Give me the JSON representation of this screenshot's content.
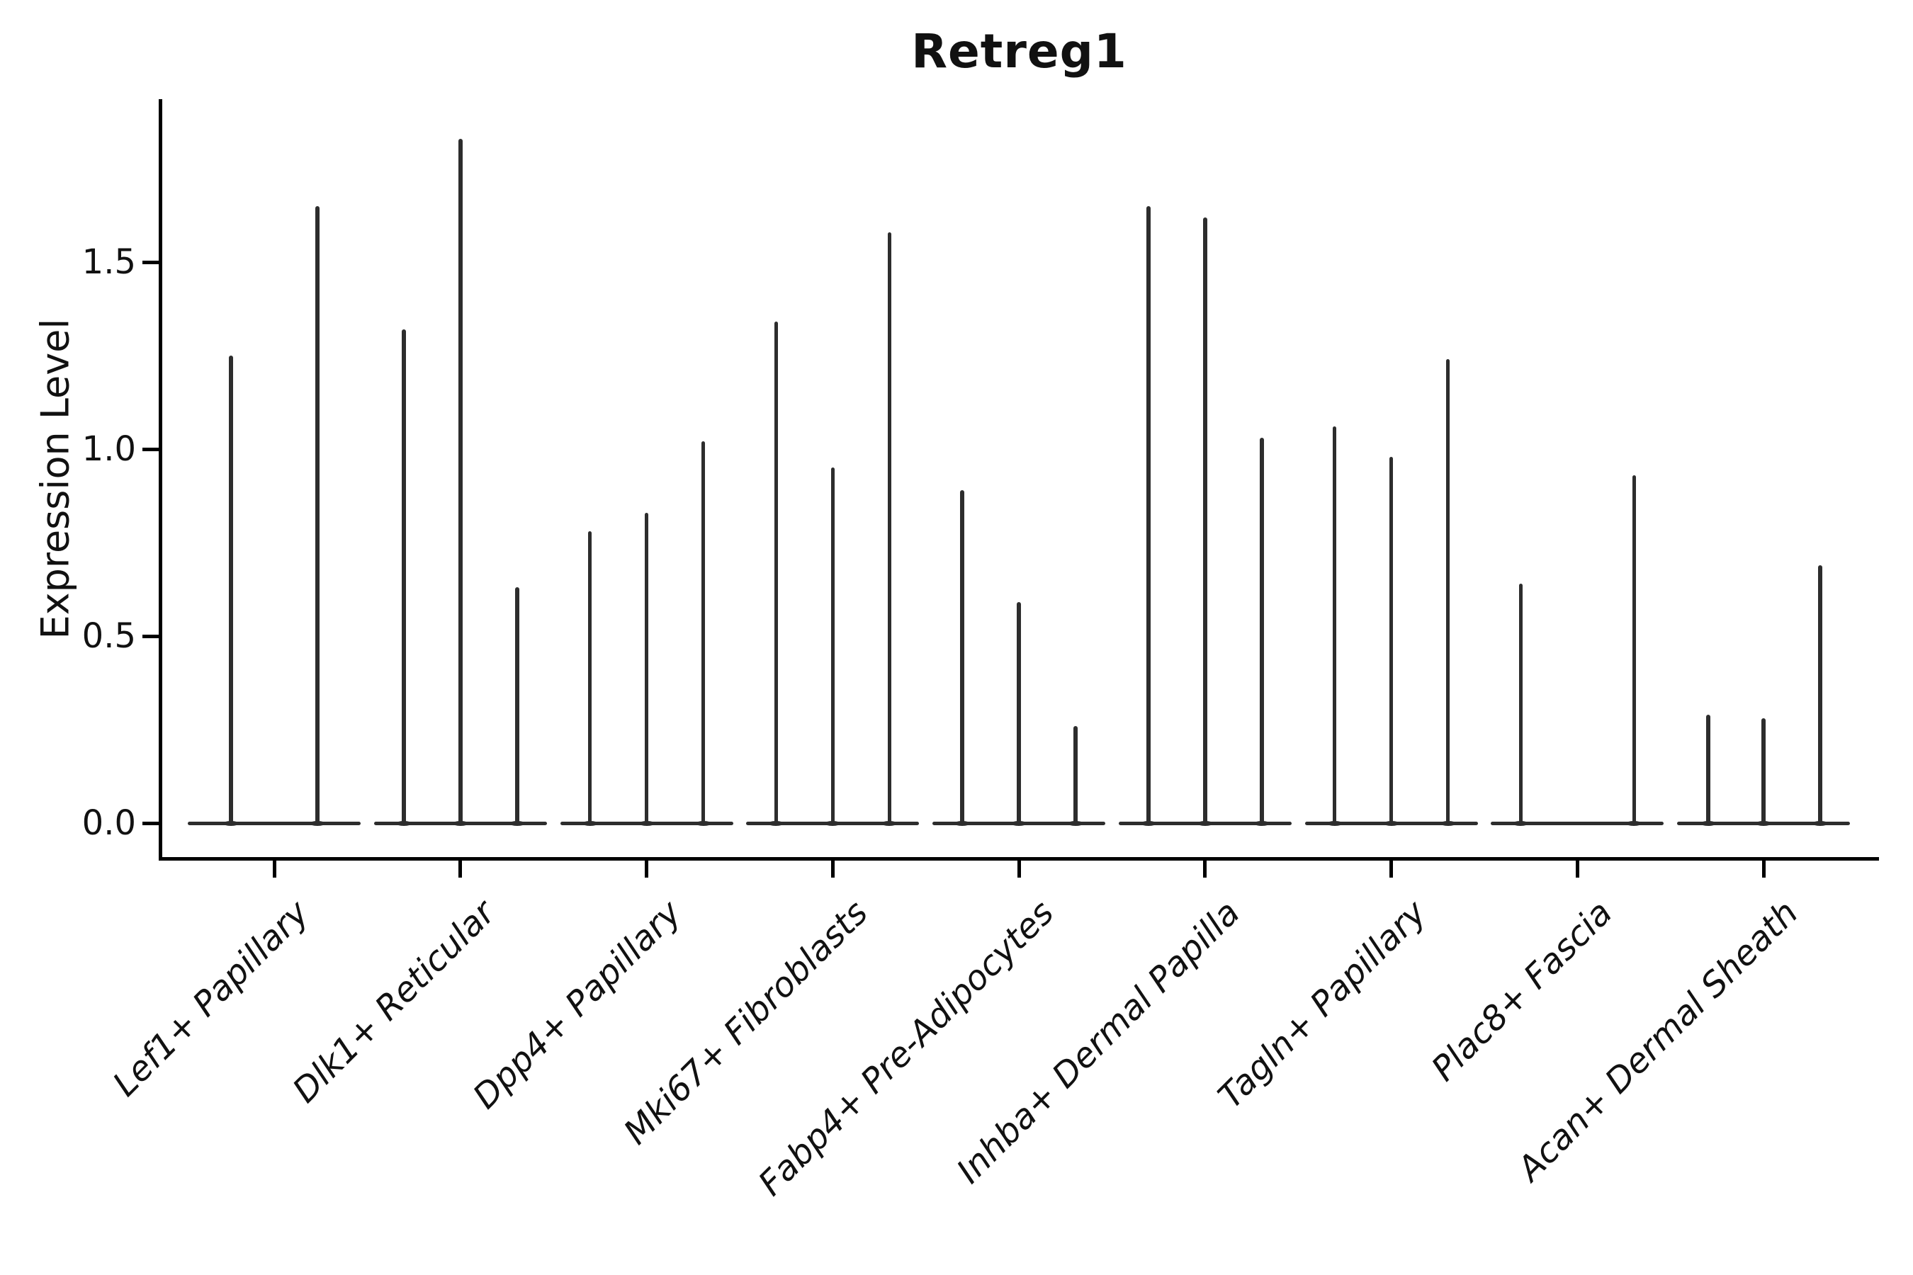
{
  "chart_data": {
    "type": "violin",
    "title": "Retreg1",
    "ylabel": "Expression Level",
    "yticks": [
      0.0,
      0.5,
      1.0,
      1.5
    ],
    "ylim": [
      -0.09,
      1.94
    ],
    "grid": false,
    "legend": null,
    "colors": {
      "violin_line": "#2d2d2d",
      "axis": "#000000",
      "text": "#111111"
    },
    "categories": [
      "Lef1+ Papillary",
      "Dlk1+ Reticular",
      "Dpp4+ Papillary",
      "Mki67+ Fibroblasts",
      "Fabp4+ Pre-Adipocytes",
      "Inhba+ Dermal Papilla",
      "Tagln+ Papillary",
      "Plac8+ Fascia",
      "Acan+ Dermal Sheath"
    ],
    "groups": [
      {
        "label": "Lef1+ Papillary",
        "spikes": [
          {
            "dx": -61,
            "value": 1.25
          },
          {
            "dx": 61,
            "value": 1.65
          }
        ]
      },
      {
        "label": "Dlk1+ Reticular",
        "spikes": [
          {
            "dx": -80,
            "value": 1.32
          },
          {
            "dx": 0,
            "value": 1.83
          },
          {
            "dx": 80,
            "value": 0.63
          }
        ]
      },
      {
        "label": "Dpp4+ Papillary",
        "spikes": [
          {
            "dx": -80,
            "value": 0.78
          },
          {
            "dx": 0,
            "value": 0.83
          },
          {
            "dx": 80,
            "value": 1.02
          }
        ]
      },
      {
        "label": "Mki67+ Fibroblasts",
        "spikes": [
          {
            "dx": -80,
            "value": 1.34
          },
          {
            "dx": 0,
            "value": 0.95
          },
          {
            "dx": 80,
            "value": 1.58
          }
        ]
      },
      {
        "label": "Fabp4+ Pre-Adipocytes",
        "spikes": [
          {
            "dx": -80,
            "value": 0.89
          },
          {
            "dx": 0,
            "value": 0.59
          },
          {
            "dx": 80,
            "value": 0.26
          }
        ]
      },
      {
        "label": "Inhba+ Dermal Papilla",
        "spikes": [
          {
            "dx": -80,
            "value": 1.65
          },
          {
            "dx": 0,
            "value": 1.62
          },
          {
            "dx": 80,
            "value": 1.03
          }
        ]
      },
      {
        "label": "Tagln+ Papillary",
        "spikes": [
          {
            "dx": -80,
            "value": 1.06
          },
          {
            "dx": 0,
            "value": 0.98
          },
          {
            "dx": 80,
            "value": 1.24
          }
        ]
      },
      {
        "label": "Plac8+ Fascia",
        "spikes": [
          {
            "dx": -80,
            "value": 0.64
          },
          {
            "dx": 80,
            "value": 0.93
          }
        ]
      },
      {
        "label": "Acan+ Dermal Sheath",
        "spikes": [
          {
            "dx": -78,
            "value": 0.29
          },
          {
            "dx": 0,
            "value": 0.28
          },
          {
            "dx": 80,
            "value": 0.69
          }
        ]
      }
    ]
  }
}
